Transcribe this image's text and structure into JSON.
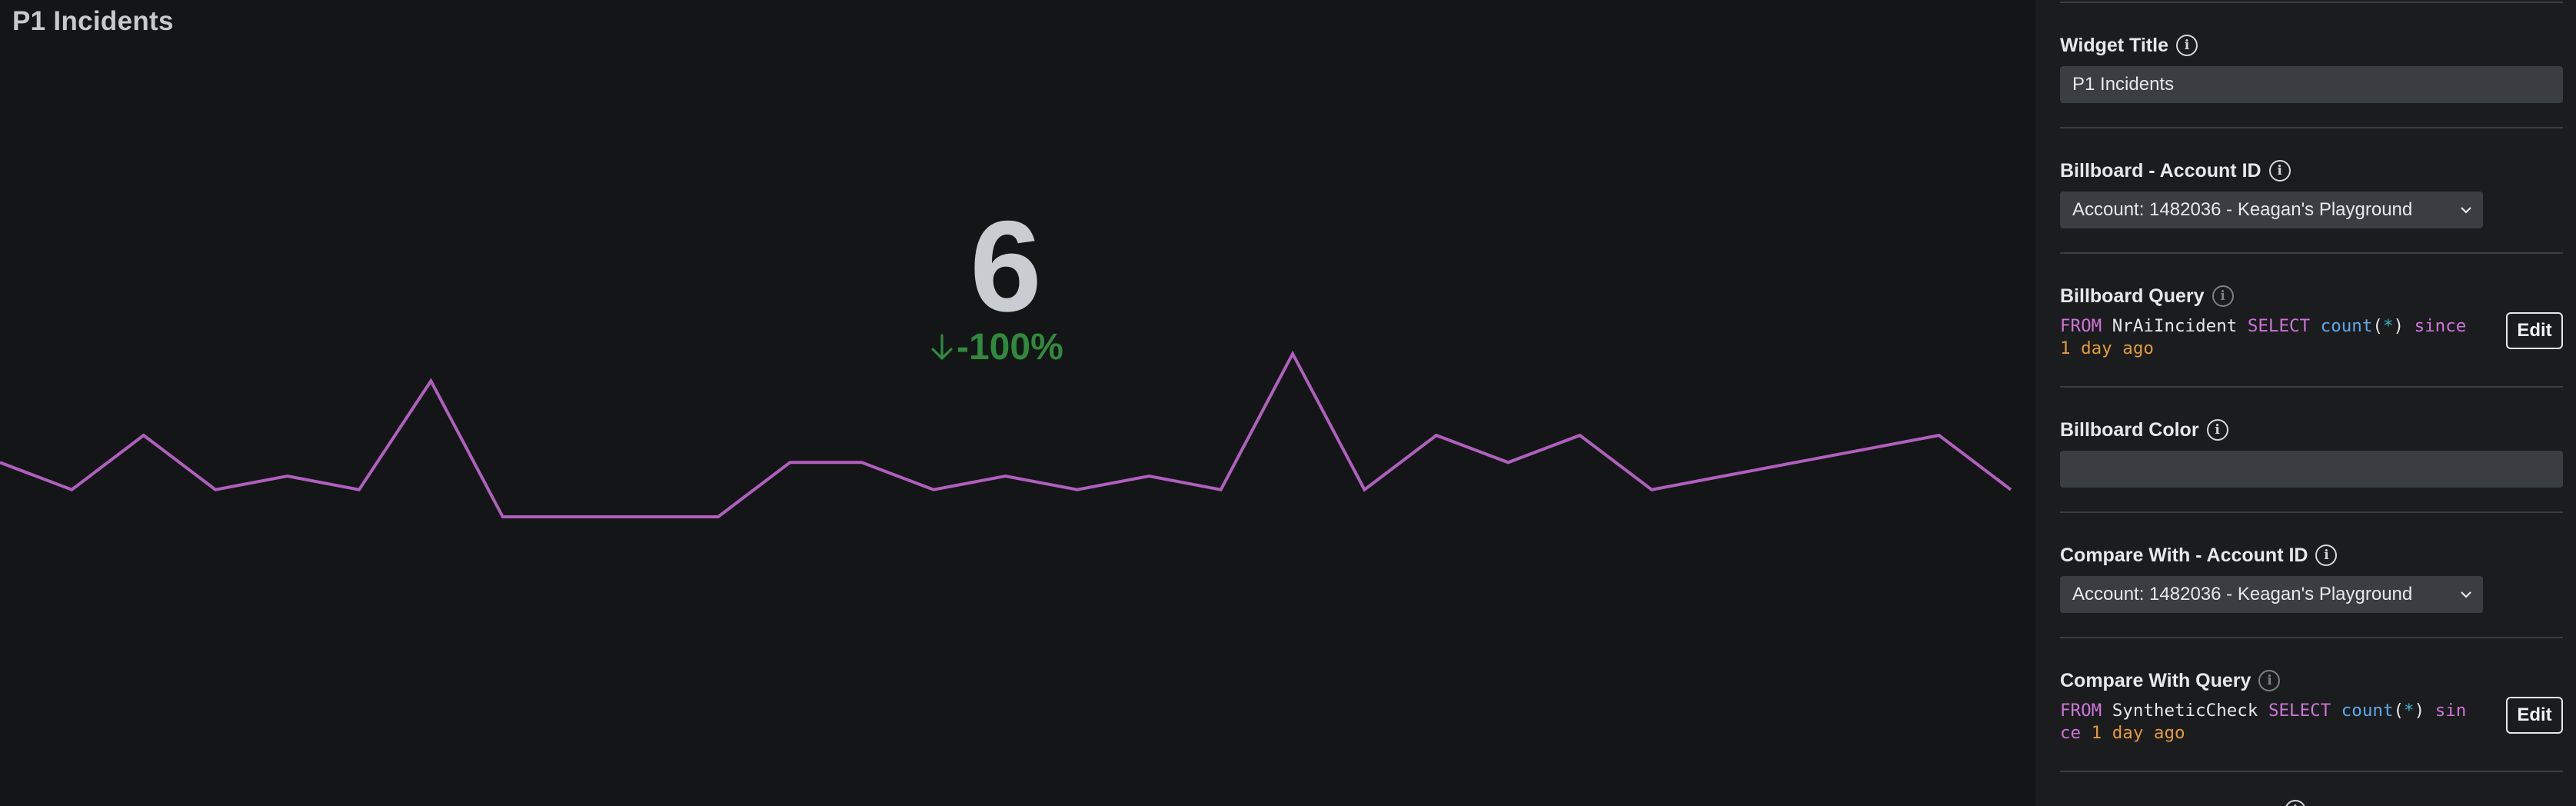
{
  "widget": {
    "title": "P1 Incidents",
    "value": "6",
    "change": "-100%",
    "change_icon": "arrow-down-icon",
    "colors": {
      "line": "#b05fbf",
      "change": "#2f8a3c",
      "value": "#c9cdd1"
    },
    "sparkline": [
      2,
      1,
      3,
      1,
      1.5,
      1,
      5,
      0,
      0,
      0,
      0,
      2,
      2,
      1,
      1.5,
      1,
      1.5,
      1,
      6,
      1,
      3,
      2,
      3,
      1,
      1.5,
      2,
      2.5,
      3,
      1
    ]
  },
  "sidebar": {
    "widget_title": {
      "label": "Widget Title",
      "value": "P1 Incidents"
    },
    "billboard_account": {
      "label": "Billboard - Account ID",
      "value": "Account: 1482036 - Keagan's Playground"
    },
    "billboard_query": {
      "label": "Billboard Query",
      "tokens": {
        "from": "FROM",
        "table": "NrAiIncident",
        "select": "SELECT",
        "fn": "count",
        "open": "(",
        "star": "*",
        "close": ")",
        "since": "since",
        "ago": "1 day ago"
      },
      "edit_label": "Edit"
    },
    "billboard_color": {
      "label": "Billboard Color",
      "value": ""
    },
    "compare_account": {
      "label": "Compare With - Account ID",
      "value": "Account: 1482036 - Keagan's Playground"
    },
    "compare_query": {
      "label": "Compare With Query",
      "tokens": {
        "from": "FROM",
        "table": "SyntheticCheck",
        "select": "SELECT",
        "fn": "count",
        "open": "(",
        "star": "*",
        "close": ")",
        "since": "since",
        "ago": "1 day ago"
      },
      "edit_label": "Edit"
    },
    "info_icon": "info-icon",
    "chevron_icon": "chevron-down-icon"
  }
}
